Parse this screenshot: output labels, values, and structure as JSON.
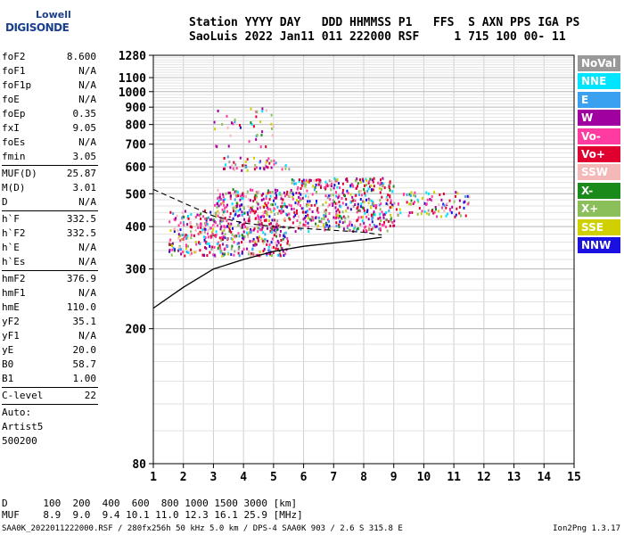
{
  "logo": {
    "line1": "Lowell",
    "line2": "DIGISONDE"
  },
  "header": {
    "line1": "Station YYYY DAY   DDD HHMMSS P1   FFS  S AXN PPS IGA PS",
    "line2": "SaoLuis 2022 Jan11 011 222000 RSF     1 715 100 00- 11"
  },
  "params": {
    "group1": [
      {
        "label": "foF2",
        "value": "8.600"
      },
      {
        "label": "foF1",
        "value": "N/A"
      },
      {
        "label": "foF1p",
        "value": "N/A"
      },
      {
        "label": "foE",
        "value": "N/A"
      },
      {
        "label": "foEp",
        "value": "0.35"
      },
      {
        "label": "fxI",
        "value": "9.05"
      },
      {
        "label": "foEs",
        "value": "N/A"
      },
      {
        "label": "fmin",
        "value": "3.05"
      }
    ],
    "group2": [
      {
        "label": "MUF(D)",
        "value": "25.87"
      },
      {
        "label": "M(D)",
        "value": "3.01"
      },
      {
        "label": "D",
        "value": "N/A"
      }
    ],
    "group3": [
      {
        "label": "h`F",
        "value": "332.5"
      },
      {
        "label": "h`F2",
        "value": "332.5"
      },
      {
        "label": "h`E",
        "value": "N/A"
      },
      {
        "label": "h`Es",
        "value": "N/A"
      }
    ],
    "group4": [
      {
        "label": "hmF2",
        "value": "376.9"
      },
      {
        "label": "hmF1",
        "value": "N/A"
      },
      {
        "label": "hmE",
        "value": "110.0"
      },
      {
        "label": "yF2",
        "value": "35.1"
      },
      {
        "label": "yF1",
        "value": "N/A"
      },
      {
        "label": "yE",
        "value": "20.0"
      },
      {
        "label": "B0",
        "value": "58.7"
      },
      {
        "label": "B1",
        "value": "1.00"
      }
    ],
    "clevel": {
      "label": "C-level",
      "value": "22"
    },
    "auto": [
      "Auto:",
      "Artist5",
      "500200"
    ]
  },
  "legend": [
    {
      "label": "NoVal",
      "color": "#999999"
    },
    {
      "label": "NNE",
      "color": "#00e5ff"
    },
    {
      "label": "E",
      "color": "#3aa0f0"
    },
    {
      "label": "W",
      "color": "#a000a0"
    },
    {
      "label": "Vo-",
      "color": "#ff3aa0"
    },
    {
      "label": "Vo+",
      "color": "#e00030"
    },
    {
      "label": "SSW",
      "color": "#f4b8b8"
    },
    {
      "label": "X-",
      "color": "#1a8a1a"
    },
    {
      "label": "X+",
      "color": "#8abf5a"
    },
    {
      "label": "SSE",
      "color": "#d0d000"
    },
    {
      "label": "NNW",
      "color": "#1a10e0"
    }
  ],
  "footer": {
    "line1": "D      100  200  400  600  800 1000 1500 3000 [km]",
    "line2": "MUF    8.9  9.0  9.4 10.1 11.0 12.3 16.1 25.9 [MHz]",
    "bottom": "SAA0K_2022011222000.RSF / 280fx256h 50 kHz 5.0 km / DPS-4 SAA0K 903 / 2.6 S 315.8 E",
    "version": "Ion2Png 1.3.17"
  },
  "chart_data": {
    "type": "scatter",
    "xlim": [
      1,
      15
    ],
    "ylim": [
      80,
      1280
    ],
    "x_ticks": [
      1,
      2,
      3,
      4,
      5,
      6,
      7,
      8,
      9,
      10,
      11,
      12,
      13,
      14,
      15
    ],
    "y_ticks": [
      80,
      200,
      300,
      400,
      500,
      600,
      700,
      800,
      900,
      1000,
      1100,
      1280
    ],
    "y_scale": "log",
    "grid": true,
    "ionogram_clusters": [
      {
        "x_range": [
          1.5,
          3.0
        ],
        "y_range": [
          330,
          450
        ],
        "density": 0.5
      },
      {
        "x_range": [
          3.0,
          5.5
        ],
        "y_range": [
          330,
          520
        ],
        "density": 0.6
      },
      {
        "x_range": [
          5.5,
          9.0
        ],
        "y_range": [
          390,
          560
        ],
        "density": 0.5
      },
      {
        "x_range": [
          9.0,
          11.5
        ],
        "y_range": [
          430,
          510
        ],
        "density": 0.3
      },
      {
        "x_range": [
          3.2,
          5.5
        ],
        "y_range": [
          590,
          650
        ],
        "density": 0.3
      },
      {
        "x_range": [
          3.0,
          5.0
        ],
        "y_range": [
          690,
          900
        ],
        "density": 0.1
      }
    ],
    "profile_curve": [
      [
        1.0,
        230
      ],
      [
        2.0,
        265
      ],
      [
        3.0,
        300
      ],
      [
        4.0,
        320
      ],
      [
        5.0,
        338
      ],
      [
        6.0,
        350
      ],
      [
        7.0,
        358
      ],
      [
        8.0,
        366
      ],
      [
        8.6,
        372
      ]
    ],
    "upper_dashed": [
      [
        1.0,
        515
      ],
      [
        2.0,
        470
      ],
      [
        3.0,
        430
      ],
      [
        4.0,
        410
      ],
      [
        5.0,
        400
      ],
      [
        6.0,
        395
      ],
      [
        7.0,
        390
      ],
      [
        8.0,
        385
      ],
      [
        8.6,
        378
      ]
    ]
  }
}
